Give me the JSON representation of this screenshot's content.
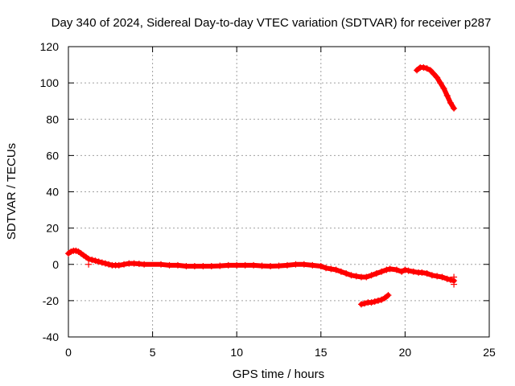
{
  "chart_data": {
    "type": "scatter",
    "title": "Day 340 of 2024, Sidereal Day-to-day VTEC variation (SDTVAR) for receiver p287",
    "xlabel": "GPS time / hours",
    "ylabel": "SDTVAR / TECUs",
    "xlim": [
      0,
      25
    ],
    "ylim": [
      -40,
      120
    ],
    "xticks": [
      0,
      5,
      10,
      15,
      20,
      25
    ],
    "yticks": [
      -40,
      -20,
      0,
      20,
      40,
      60,
      80,
      100,
      120
    ],
    "grid": true,
    "marker": "+",
    "marker_color": "#ff0000",
    "series": [
      {
        "name": "main",
        "x": [
          0.0,
          0.15,
          0.3,
          0.45,
          0.6,
          0.75,
          0.9,
          1.05,
          1.2,
          1.4,
          1.6,
          1.8,
          2.0,
          2.2,
          2.4,
          2.6,
          2.8,
          3.0,
          3.3,
          3.6,
          3.9,
          4.2,
          4.5,
          5.5,
          6.0,
          6.5,
          7.0,
          7.5,
          8.0,
          8.5,
          9.0,
          9.5,
          10.0,
          10.5,
          11.0,
          11.5,
          12.0,
          12.5,
          13.0,
          13.5,
          14.0,
          14.5,
          15.0,
          15.3,
          15.6,
          15.9,
          16.2,
          16.5,
          16.8,
          17.1,
          17.4,
          17.7,
          18.0,
          18.3,
          18.6,
          18.9,
          19.1,
          19.5,
          19.8,
          20.0,
          20.2,
          20.5,
          20.8,
          21.0,
          21.3,
          21.6,
          21.9,
          22.2,
          22.5,
          22.7,
          22.9
        ],
        "y": [
          6,
          7,
          7.5,
          7.5,
          7,
          6,
          5,
          4,
          3,
          2.5,
          2,
          1.5,
          1,
          0.5,
          0,
          -0.5,
          -0.5,
          -0.5,
          0,
          0.5,
          0.5,
          0.3,
          0,
          0,
          -0.5,
          -0.5,
          -1,
          -1,
          -1,
          -1,
          -0.8,
          -0.5,
          -0.5,
          -0.5,
          -0.5,
          -0.8,
          -1,
          -0.8,
          -0.5,
          0,
          0,
          -0.5,
          -1,
          -2,
          -2.5,
          -3,
          -4,
          -5,
          -6,
          -6.5,
          -7,
          -7,
          -6,
          -5,
          -4,
          -3,
          -2.5,
          -3,
          -4,
          -3,
          -3.5,
          -4,
          -4.5,
          -4.5,
          -5,
          -6,
          -6.5,
          -7,
          -8,
          -8.5,
          -9
        ]
      },
      {
        "name": "lower-segment",
        "x": [
          17.4,
          17.6,
          17.8,
          18.0,
          18.2,
          18.4,
          18.6,
          18.8,
          19.0
        ],
        "y": [
          -22,
          -21.5,
          -21,
          -21,
          -20.5,
          -20,
          -19.5,
          -18.5,
          -17
        ]
      },
      {
        "name": "upper-segment",
        "x": [
          20.7,
          20.9,
          21.1,
          21.3,
          21.5,
          21.7,
          21.9,
          22.1,
          22.3,
          22.5,
          22.7,
          22.9
        ],
        "y": [
          107,
          108.5,
          108.5,
          108,
          107,
          105,
          103,
          100,
          97,
          93,
          89,
          86
        ]
      }
    ],
    "extra_points": [
      {
        "x": 1.2,
        "y": 0
      },
      {
        "x": 22.9,
        "y": -11
      },
      {
        "x": 22.9,
        "y": -7
      }
    ]
  }
}
